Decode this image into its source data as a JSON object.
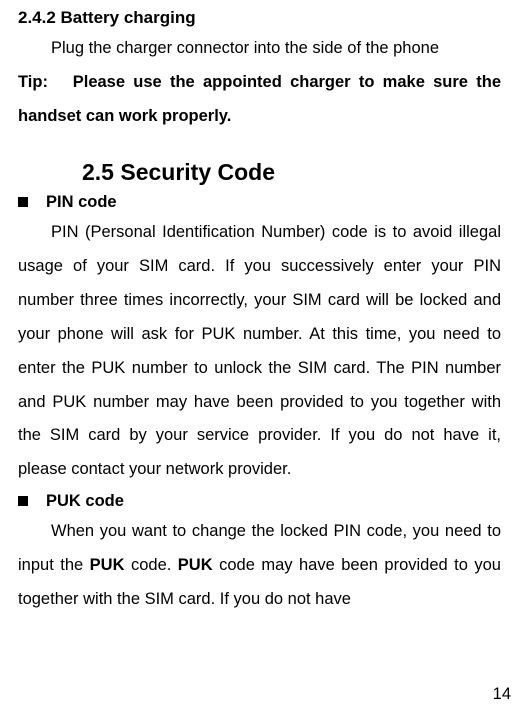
{
  "section_2_4_2": {
    "heading": "2.4.2 Battery charging",
    "body": "Plug the charger connector into the side of the phone",
    "tip_prefix": "Tip:",
    "tip_body": "Please use the appointed charger to make sure the handset can work properly."
  },
  "section_2_5": {
    "heading": "2.5    Security Code",
    "pin": {
      "title": "PIN code",
      "body": "PIN (Personal Identification Number) code is to avoid illegal usage of your SIM card. If you successively enter your PIN number three times incorrectly, your SIM card will be locked and your phone will ask for PUK number. At this time, you need to enter the PUK number to unlock the SIM card. The PIN number and PUK number may have been provided to you together with the SIM card by your service provider. If you do not have it, please contact your network provider."
    },
    "puk": {
      "title": "PUK code",
      "body_pre": "When you want to change the locked PIN code, you need to input the ",
      "body_bold1": "PUK",
      "body_mid1": " code.  ",
      "body_bold2": "PUK",
      "body_mid2": " code may have been provided to you together with the SIM card. If you do not have"
    }
  },
  "page_number": "14"
}
